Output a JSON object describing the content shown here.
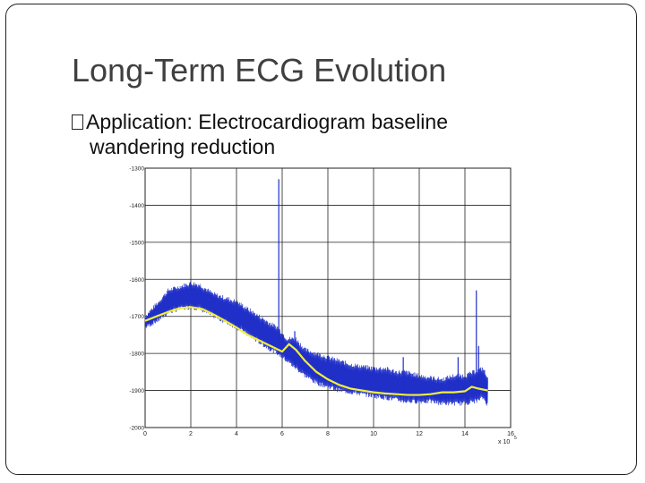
{
  "slide": {
    "title": "Long-Term ECG Evolution",
    "bullet": {
      "line1": "Application: Electrocardiogram baseline",
      "line2": "wandering reduction"
    }
  },
  "chart_data": {
    "type": "line",
    "title": "",
    "xlabel": "",
    "ylabel": "",
    "x_multiplier_label": "x 10",
    "x_multiplier_exponent": "5",
    "xlim": [
      0,
      16
    ],
    "ylim": [
      -2000,
      -1300
    ],
    "x_ticks": [
      "0",
      "2",
      "4",
      "6",
      "8",
      "10",
      "12",
      "14",
      "16"
    ],
    "y_ticks": [
      "-1300",
      "-1400",
      "-1500",
      "-1600",
      "-1700",
      "-1800",
      "-1900",
      "-2000"
    ],
    "grid": true,
    "colors": {
      "raw": "#1f2fc8",
      "baseline": "#f2ee3a",
      "grid": "#222222"
    },
    "series": [
      {
        "role": "raw ECG signal",
        "x": [
          0.0,
          0.3,
          0.6,
          1.0,
          1.5,
          2.0,
          2.4,
          3.0,
          3.5,
          4.0,
          4.5,
          5.0,
          5.5,
          5.8,
          6.2,
          6.6,
          7.0,
          7.5,
          8.0,
          8.5,
          9.0,
          9.5,
          10.0,
          10.5,
          11.0,
          11.4,
          12.0,
          12.5,
          13.0,
          13.5,
          14.0,
          14.4,
          14.8,
          15.0
        ],
        "upper": [
          -1700,
          -1680,
          -1660,
          -1630,
          -1620,
          -1610,
          -1615,
          -1640,
          -1650,
          -1660,
          -1680,
          -1700,
          -1720,
          -1730,
          -1760,
          -1760,
          -1790,
          -1800,
          -1810,
          -1820,
          -1830,
          -1835,
          -1840,
          -1840,
          -1850,
          -1850,
          -1860,
          -1865,
          -1870,
          -1860,
          -1860,
          -1850,
          -1840,
          -1870
        ],
        "lower": [
          -1730,
          -1720,
          -1710,
          -1690,
          -1680,
          -1675,
          -1680,
          -1700,
          -1715,
          -1730,
          -1750,
          -1770,
          -1790,
          -1800,
          -1820,
          -1840,
          -1860,
          -1880,
          -1890,
          -1900,
          -1905,
          -1910,
          -1915,
          -1920,
          -1925,
          -1930,
          -1930,
          -1930,
          -1935,
          -1935,
          -1935,
          -1930,
          -1920,
          -1940
        ],
        "spikes": [
          {
            "x": 5.85,
            "y": -1330
          },
          {
            "x": 6.55,
            "y": -1740
          },
          {
            "x": 11.3,
            "y": -1810
          },
          {
            "x": 13.3,
            "y": -1870
          },
          {
            "x": 13.7,
            "y": -1810
          },
          {
            "x": 14.5,
            "y": -1630
          },
          {
            "x": 14.6,
            "y": -1780
          }
        ]
      },
      {
        "role": "estimated baseline",
        "x": [
          0.0,
          0.5,
          1.0,
          1.5,
          2.0,
          2.5,
          3.0,
          3.5,
          4.0,
          4.5,
          5.0,
          5.5,
          6.0,
          6.3,
          6.6,
          7.0,
          7.5,
          8.0,
          8.5,
          9.0,
          9.5,
          10.0,
          10.5,
          11.0,
          11.5,
          12.0,
          12.5,
          13.0,
          13.5,
          14.0,
          14.3,
          14.6,
          15.0
        ],
        "y": [
          -1712,
          -1700,
          -1688,
          -1678,
          -1675,
          -1680,
          -1695,
          -1712,
          -1730,
          -1750,
          -1765,
          -1780,
          -1795,
          -1775,
          -1790,
          -1820,
          -1850,
          -1870,
          -1885,
          -1895,
          -1900,
          -1905,
          -1908,
          -1910,
          -1912,
          -1912,
          -1910,
          -1905,
          -1905,
          -1902,
          -1890,
          -1895,
          -1900
        ]
      }
    ]
  }
}
